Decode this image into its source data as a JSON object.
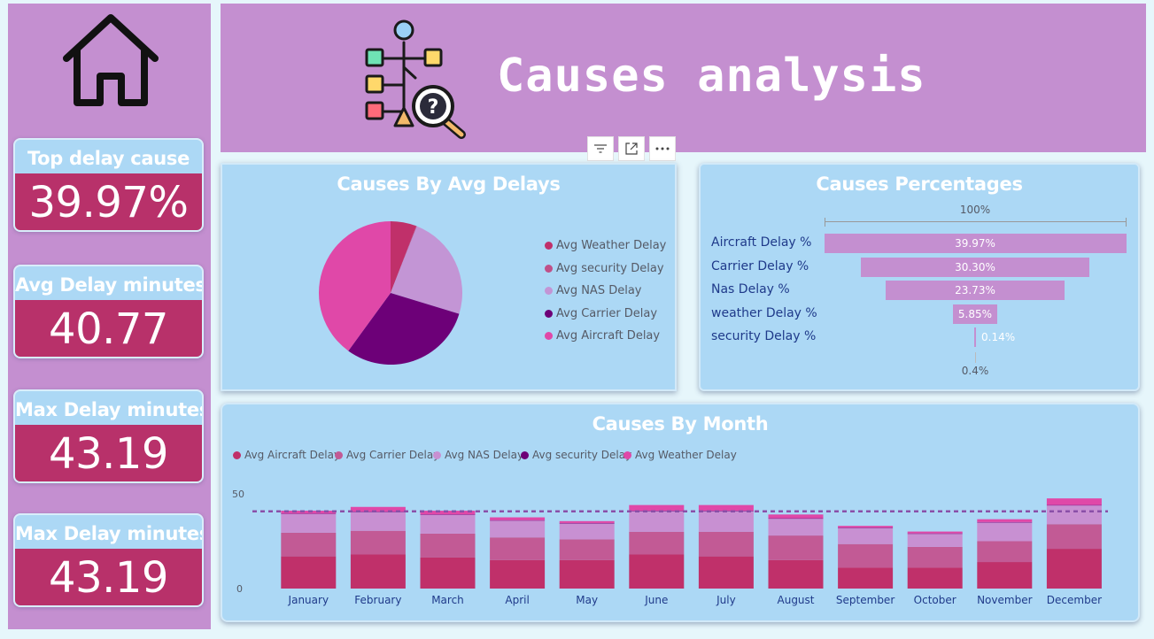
{
  "header": {
    "title": "Causes analysis"
  },
  "kpis": [
    {
      "title": "Top delay cause",
      "value": "39.97%"
    },
    {
      "title": "Avg Delay minutes",
      "value": "40.77"
    },
    {
      "title": "Max Delay minutes",
      "value": "43.19"
    },
    {
      "title": "Max Delay minutes",
      "value": "43.19"
    }
  ],
  "colors": {
    "banner": "#c48fd0",
    "card": "#acd8f5",
    "kpi_value_bg": "#b8316a",
    "weather": "#c0306a",
    "security": "#c05088",
    "nas": "#c395d5",
    "carrier": "#6d0078",
    "aircraft": "#e048a8",
    "stack_aircraft": "#c0306a",
    "stack_carrier": "#c25a95",
    "stack_nas": "#c890d2",
    "stack_security": "#6d0078",
    "stack_weather": "#e048a8"
  },
  "icons": {
    "home": "home-icon",
    "header": "hierarchy-magnifier-question-icon",
    "filter": "filter-icon",
    "focus": "focus-mode-icon",
    "more": "more-options-icon"
  },
  "pie_card": {
    "title": "Causes By Avg Delays",
    "legend": [
      "Avg Weather Delay",
      "Avg security Delay",
      "Avg NAS Delay",
      "Avg Carrier Delay",
      "Avg Aircraft Delay"
    ]
  },
  "funnel_card": {
    "title": "Causes Percentages",
    "top_label": "100%",
    "bottom_label": "0.4%",
    "rows": [
      {
        "label": "Aircraft Delay %",
        "value_label": "39.97%"
      },
      {
        "label": "Carrier Delay %",
        "value_label": "30.30%"
      },
      {
        "label": "Nas Delay %",
        "value_label": "23.73%"
      },
      {
        "label": "weather Delay %",
        "value_label": "5.85%"
      },
      {
        "label": "security Delay %",
        "value_label": "0.14%"
      }
    ]
  },
  "month_card": {
    "title": "Causes By Month",
    "legend": [
      "Avg Aircraft Delay",
      "Avg Carrier Delay",
      "Avg NAS Delay",
      "Avg security Delay",
      "Avg Weather Delay"
    ]
  },
  "chart_data": [
    {
      "type": "pie",
      "title": "Causes By Avg Delays",
      "labels": [
        "Avg Weather Delay",
        "Avg security Delay",
        "Avg NAS Delay",
        "Avg Carrier Delay",
        "Avg Aircraft Delay"
      ],
      "values": [
        5.85,
        0.14,
        23.73,
        30.3,
        39.97
      ],
      "colors": [
        "#c0306a",
        "#c05088",
        "#c395d5",
        "#6d0078",
        "#e048a8"
      ],
      "legend": "right"
    },
    {
      "type": "bar",
      "subtype": "funnel",
      "title": "Causes Percentages",
      "categories": [
        "Aircraft Delay %",
        "Carrier Delay %",
        "Nas Delay %",
        "weather Delay %",
        "security Delay %"
      ],
      "values": [
        39.97,
        30.3,
        23.73,
        5.85,
        0.14
      ],
      "percent_of_first": {
        "top": "100%",
        "bottom": "0.4%"
      }
    },
    {
      "type": "bar",
      "subtype": "stacked",
      "title": "Causes By Month",
      "categories": [
        "January",
        "February",
        "March",
        "April",
        "May",
        "June",
        "July",
        "August",
        "September",
        "October",
        "November",
        "December"
      ],
      "series": [
        {
          "name": "Avg Aircraft Delay",
          "values": [
            17,
            18,
            16.5,
            15,
            15,
            18,
            17,
            15,
            11,
            11,
            14,
            21
          ]
        },
        {
          "name": "Avg Carrier Delay",
          "values": [
            12.5,
            12.5,
            12.5,
            12,
            11,
            12,
            13,
            13,
            12.5,
            11,
            11,
            13
          ]
        },
        {
          "name": "Avg NAS Delay",
          "values": [
            10,
            10,
            10,
            9,
            8.5,
            11,
            11,
            9,
            8.5,
            7,
            10,
            10
          ]
        },
        {
          "name": "Avg security Delay",
          "values": [
            0.1,
            0.1,
            0.1,
            0.1,
            0.1,
            0.1,
            0.1,
            0.1,
            0.1,
            0.1,
            0.1,
            0.1
          ]
        },
        {
          "name": "Avg Weather Delay",
          "values": [
            1.5,
            2.5,
            2,
            1.5,
            1,
            3,
            3,
            2,
            1,
            1,
            1.5,
            3.5
          ]
        }
      ],
      "y_ticks": [
        "0",
        "50"
      ],
      "ylim": [
        0,
        52
      ],
      "reference_line": 40.77,
      "legend": "top-left"
    }
  ]
}
